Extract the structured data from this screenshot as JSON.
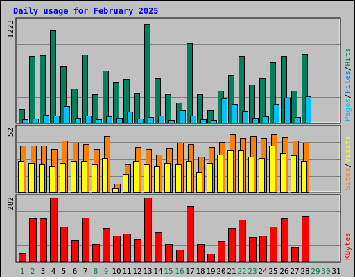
{
  "chart_data": {
    "type": "bar",
    "title": "Daily usage for February 2025",
    "x": [
      "1",
      "2",
      "3",
      "4",
      "5",
      "6",
      "7",
      "8",
      "9",
      "10",
      "11",
      "12",
      "13",
      "14",
      "15",
      "16",
      "17",
      "18",
      "19",
      "20",
      "21",
      "22",
      "23",
      "24",
      "25",
      "26",
      "27",
      "28",
      "29",
      "30",
      "31"
    ],
    "weekend_days": [
      "1",
      "2",
      "8",
      "9",
      "15",
      "16",
      "22",
      "23",
      "29",
      "30"
    ],
    "data_days": 28,
    "panels": [
      {
        "id": "hits",
        "scale_label": "1223",
        "max": 1223,
        "right_label": [
          "Pages",
          "Files",
          "Hits"
        ],
        "series": [
          {
            "name": "Hits",
            "color": "#00805c",
            "values": [
              170,
              800,
              810,
              1110,
              690,
              415,
              815,
              345,
              630,
              485,
              530,
              360,
              1180,
              540,
              345,
              250,
              955,
              345,
              160,
              385,
              580,
              800,
              460,
              535,
              730,
              800,
              385,
              825
            ]
          },
          {
            "name": "Files",
            "color": "#00c0ff",
            "values": [
              50,
              55,
              100,
              95,
              205,
              70,
              90,
              50,
              85,
              65,
              140,
              60,
              75,
              90,
              45,
              160,
              90,
              50,
              45,
              300,
              230,
              145,
              65,
              80,
              230,
              305,
              75,
              325
            ]
          },
          {
            "name": "Pages",
            "color": "#00c0ff",
            "values": []
          }
        ]
      },
      {
        "id": "visits",
        "scale_label": "52",
        "max": 52,
        "right_label": [
          "Sites",
          "Visits"
        ],
        "series": [
          {
            "name": "Visits",
            "color": "#ff8000",
            "values": [
              38,
              38,
              38,
              35,
              42,
              40,
              39,
              35,
              46,
              7,
              23,
              37,
              35,
              31,
              36,
              40,
              39,
              29,
              37,
              41,
              47,
              44,
              46,
              44,
              47,
              45,
              42,
              40
            ]
          },
          {
            "name": "Sites",
            "color": "#ffff00",
            "values": [
              25,
              24,
              23,
              21,
              24,
              25,
              25,
              23,
              28,
              4,
              15,
              25,
              23,
              21,
              24,
              23,
              25,
              17,
              24,
              31,
              34,
              34,
              29,
              28,
              38,
              32,
              30,
              25
            ]
          }
        ]
      },
      {
        "id": "kbytes",
        "scale_label": "282",
        "max": 282,
        "right_label": [
          "KBytes"
        ],
        "series": [
          {
            "name": "KBytes",
            "color": "#ff0000",
            "values": [
              40,
              190,
              190,
              282,
              155,
              95,
              195,
              80,
              150,
              115,
              125,
              100,
              282,
              130,
              80,
              55,
              245,
              80,
              35,
              90,
              150,
              185,
              110,
              115,
              155,
              190,
              65,
              200
            ]
          }
        ]
      }
    ],
    "colors": {
      "background": "#c0c0c0",
      "title": "#0000ff",
      "day_weekday": "#000000",
      "day_weekend": "#00805c",
      "gridline": "#808080"
    }
  }
}
